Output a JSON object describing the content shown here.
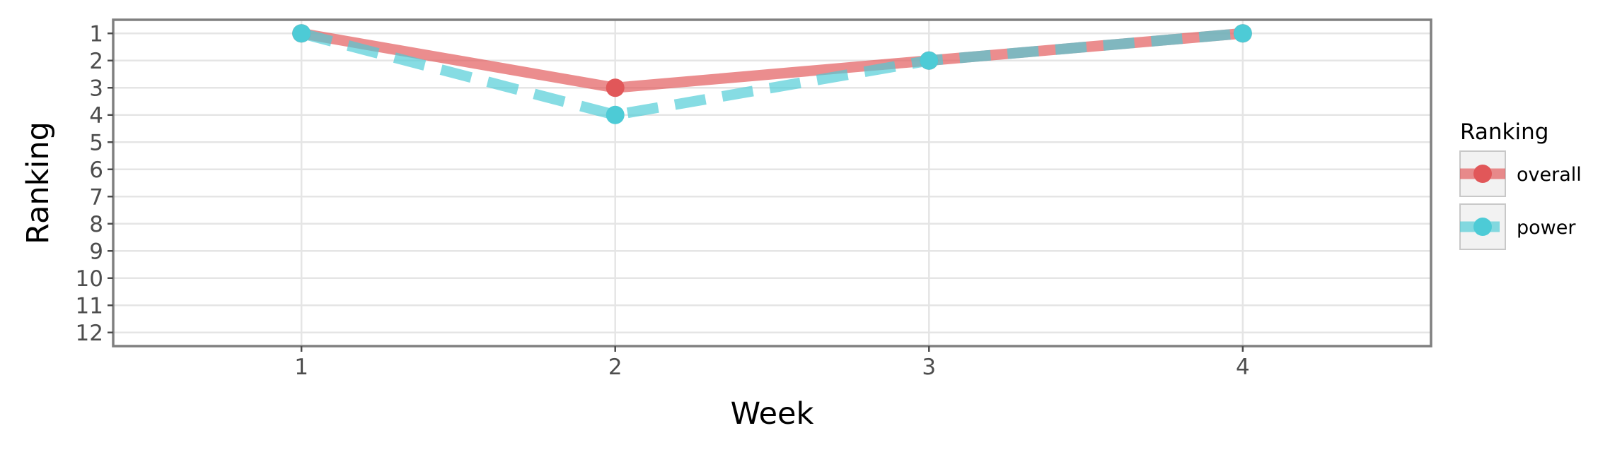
{
  "chart_data": {
    "type": "line",
    "xlabel": "Week",
    "ylabel": "Ranking",
    "x": [
      1,
      2,
      3,
      4
    ],
    "xlim": [
      0.4,
      4.6
    ],
    "ylim": [
      12.5,
      0.5
    ],
    "y_reversed": true,
    "x_ticks": [
      "1",
      "2",
      "3",
      "4"
    ],
    "y_ticks": [
      "1",
      "2",
      "3",
      "4",
      "5",
      "6",
      "7",
      "8",
      "9",
      "10",
      "11",
      "12"
    ],
    "grid": true,
    "legend": {
      "title": "Ranking",
      "position": "right"
    },
    "series": [
      {
        "name": "overall",
        "values": [
          1,
          3,
          2,
          1
        ],
        "color": "#E15759",
        "line_style": "solid"
      },
      {
        "name": "power",
        "values": [
          1,
          4,
          2,
          1
        ],
        "color": "#4DCBD6",
        "line_style": "dashed"
      }
    ]
  }
}
